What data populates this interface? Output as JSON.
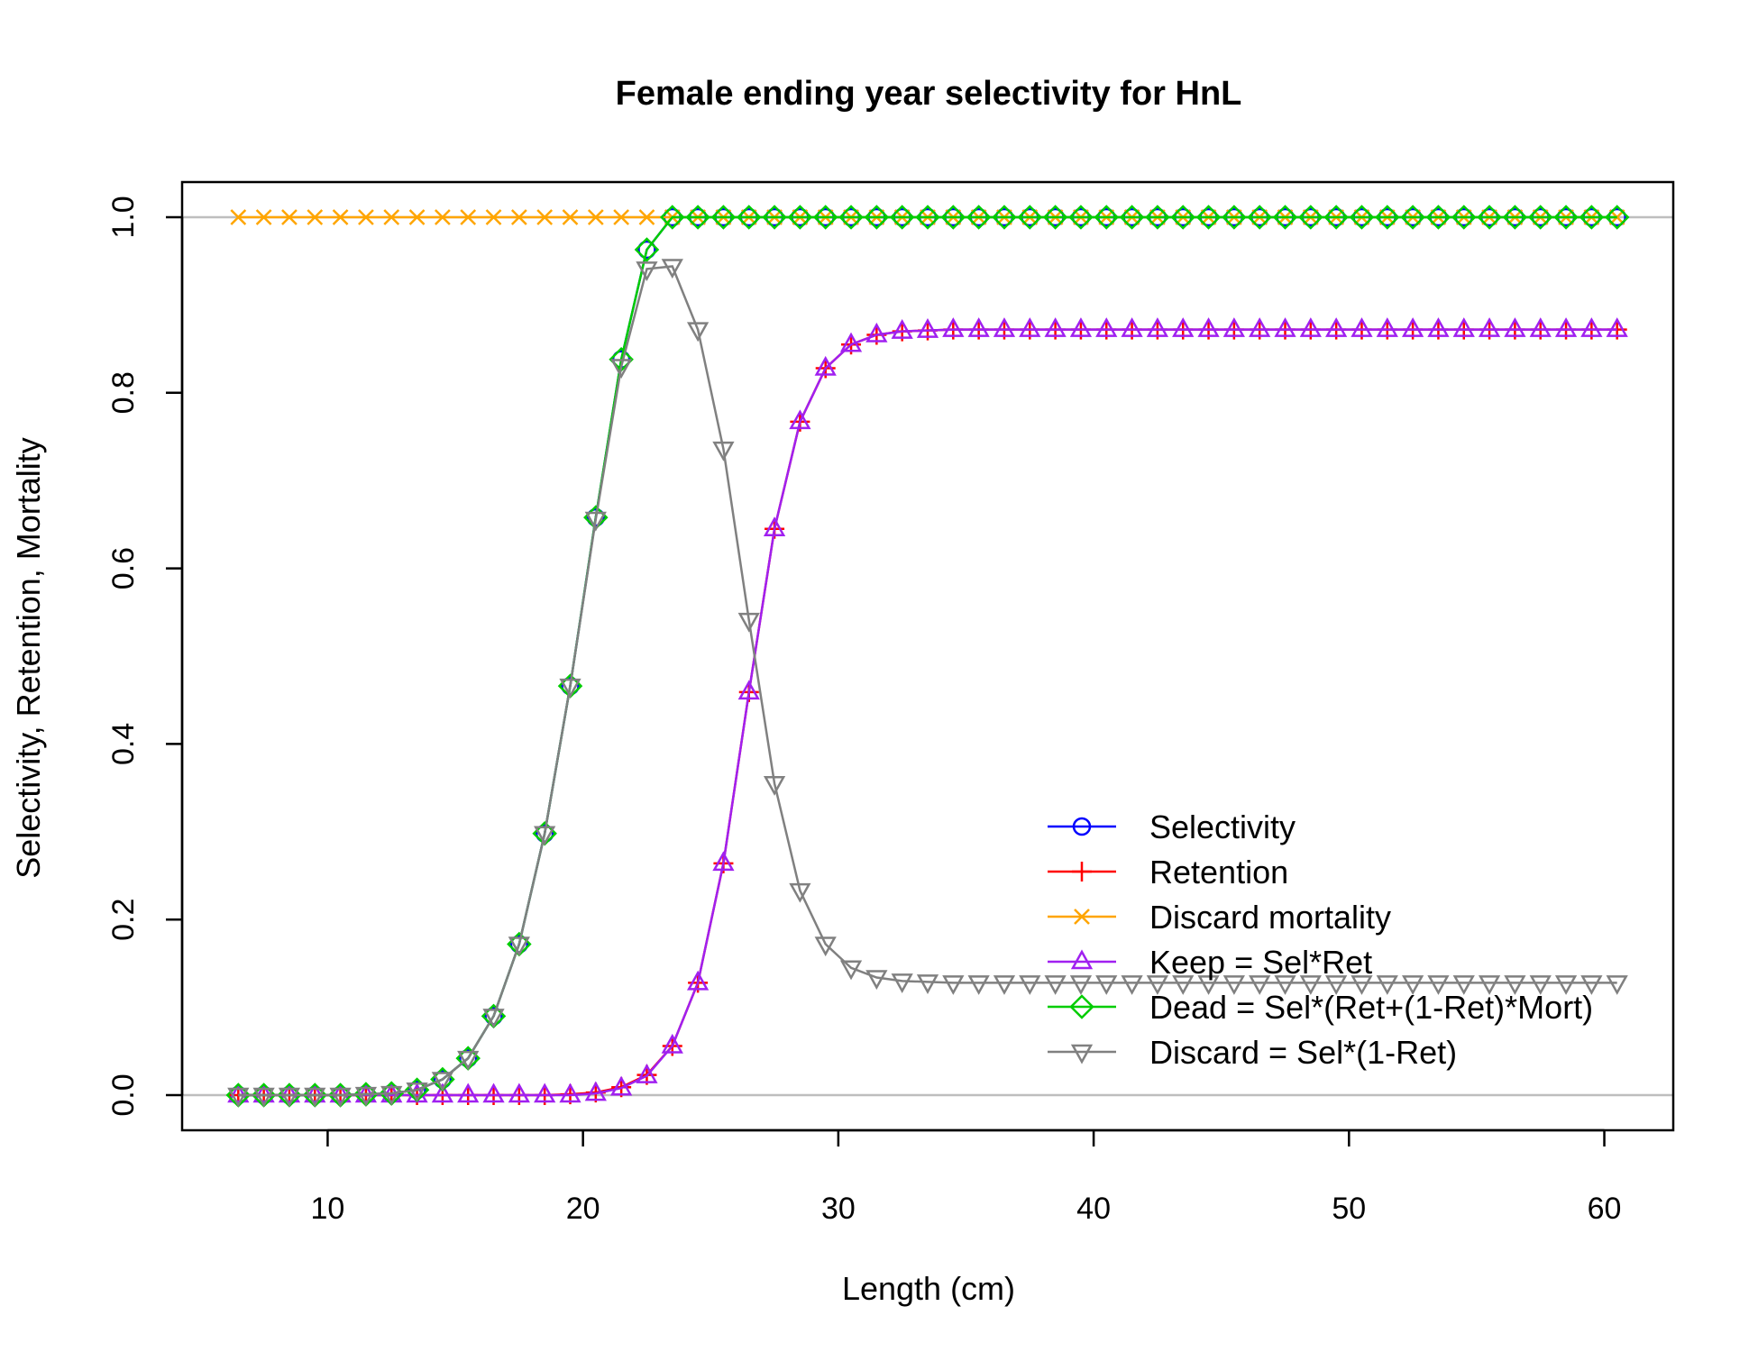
{
  "chart_data": {
    "type": "line",
    "title": "Female ending year selectivity for HnL",
    "xlabel": "Length (cm)",
    "ylabel": "Selectivity, Retention, Mortality",
    "xlim": [
      4.3,
      62.7
    ],
    "ylim": [
      -0.04,
      1.04
    ],
    "xticks": [
      10,
      20,
      30,
      40,
      50,
      60
    ],
    "yticks": [
      0.0,
      0.2,
      0.4,
      0.6,
      0.8,
      1.0
    ],
    "xtick_labels": [
      "10",
      "20",
      "30",
      "40",
      "50",
      "60"
    ],
    "ytick_labels": [
      "0.0",
      "0.2",
      "0.4",
      "0.6",
      "0.8",
      "1.0"
    ],
    "reference_lines": [
      0,
      1
    ],
    "reference_color": "#bebebe",
    "legend_position": "bottom-right",
    "x": [
      6.5,
      7.5,
      8.5,
      9.5,
      10.5,
      11.5,
      12.5,
      13.5,
      14.5,
      15.5,
      16.5,
      17.5,
      18.5,
      19.5,
      20.5,
      21.5,
      22.5,
      23.5,
      24.5,
      25.5,
      26.5,
      27.5,
      28.5,
      29.5,
      30.5,
      31.5,
      32.5,
      33.5,
      34.5,
      35.5,
      36.5,
      37.5,
      38.5,
      39.5,
      40.5,
      41.5,
      42.5,
      43.5,
      44.5,
      45.5,
      46.5,
      47.5,
      48.5,
      49.5,
      50.5,
      51.5,
      52.5,
      53.5,
      54.5,
      55.5,
      56.5,
      57.5,
      58.5,
      59.5,
      60.5
    ],
    "series": [
      {
        "name": "Selectivity",
        "color": "#0000ff",
        "marker": "circle",
        "values": [
          0.0,
          0.0,
          0.0,
          0.0,
          0.0,
          0.001,
          0.002,
          0.006,
          0.018,
          0.042,
          0.09,
          0.172,
          0.298,
          0.466,
          0.658,
          0.838,
          0.963,
          1.0,
          1.0,
          1.0,
          1.0,
          1.0,
          1.0,
          1.0,
          1.0,
          1.0,
          1.0,
          1.0,
          1.0,
          1.0,
          1.0,
          1.0,
          1.0,
          1.0,
          1.0,
          1.0,
          1.0,
          1.0,
          1.0,
          1.0,
          1.0,
          1.0,
          1.0,
          1.0,
          1.0,
          1.0,
          1.0,
          1.0,
          1.0,
          1.0,
          1.0,
          1.0,
          1.0,
          1.0,
          1.0
        ]
      },
      {
        "name": "Retention",
        "color": "#ff0000",
        "marker": "plus",
        "values": [
          0.0,
          0.0,
          0.0,
          0.0,
          0.0,
          0.0,
          0.0,
          0.0,
          0.0,
          0.0,
          0.0,
          0.0,
          0.0,
          0.001,
          0.003,
          0.009,
          0.023,
          0.056,
          0.128,
          0.264,
          0.459,
          0.645,
          0.767,
          0.828,
          0.855,
          0.866,
          0.87,
          0.871,
          0.872,
          0.872,
          0.872,
          0.872,
          0.872,
          0.872,
          0.872,
          0.872,
          0.872,
          0.872,
          0.872,
          0.872,
          0.872,
          0.872,
          0.872,
          0.872,
          0.872,
          0.872,
          0.872,
          0.872,
          0.872,
          0.872,
          0.872,
          0.872,
          0.872,
          0.872,
          0.872
        ]
      },
      {
        "name": "Discard mortality",
        "color": "#ffa500",
        "marker": "x",
        "values": [
          1.0,
          1.0,
          1.0,
          1.0,
          1.0,
          1.0,
          1.0,
          1.0,
          1.0,
          1.0,
          1.0,
          1.0,
          1.0,
          1.0,
          1.0,
          1.0,
          1.0,
          1.0,
          1.0,
          1.0,
          1.0,
          1.0,
          1.0,
          1.0,
          1.0,
          1.0,
          1.0,
          1.0,
          1.0,
          1.0,
          1.0,
          1.0,
          1.0,
          1.0,
          1.0,
          1.0,
          1.0,
          1.0,
          1.0,
          1.0,
          1.0,
          1.0,
          1.0,
          1.0,
          1.0,
          1.0,
          1.0,
          1.0,
          1.0,
          1.0,
          1.0,
          1.0,
          1.0,
          1.0,
          1.0
        ]
      },
      {
        "name": "Keep = Sel*Ret",
        "color": "#a020f0",
        "marker": "triangle-up",
        "values": [
          0.0,
          0.0,
          0.0,
          0.0,
          0.0,
          0.0,
          0.0,
          0.0,
          0.0,
          0.0,
          0.0,
          0.0,
          0.0,
          0.0,
          0.002,
          0.008,
          0.022,
          0.056,
          0.128,
          0.264,
          0.459,
          0.645,
          0.767,
          0.828,
          0.855,
          0.866,
          0.87,
          0.871,
          0.872,
          0.872,
          0.872,
          0.872,
          0.872,
          0.872,
          0.872,
          0.872,
          0.872,
          0.872,
          0.872,
          0.872,
          0.872,
          0.872,
          0.872,
          0.872,
          0.872,
          0.872,
          0.872,
          0.872,
          0.872,
          0.872,
          0.872,
          0.872,
          0.872,
          0.872,
          0.872
        ]
      },
      {
        "name": "Dead = Sel*(Ret+(1-Ret)*Mort)",
        "color": "#00cd00",
        "marker": "diamond",
        "values": [
          0.0,
          0.0,
          0.0,
          0.0,
          0.0,
          0.001,
          0.002,
          0.006,
          0.018,
          0.042,
          0.09,
          0.172,
          0.298,
          0.466,
          0.658,
          0.838,
          0.963,
          1.0,
          1.0,
          1.0,
          1.0,
          1.0,
          1.0,
          1.0,
          1.0,
          1.0,
          1.0,
          1.0,
          1.0,
          1.0,
          1.0,
          1.0,
          1.0,
          1.0,
          1.0,
          1.0,
          1.0,
          1.0,
          1.0,
          1.0,
          1.0,
          1.0,
          1.0,
          1.0,
          1.0,
          1.0,
          1.0,
          1.0,
          1.0,
          1.0,
          1.0,
          1.0,
          1.0,
          1.0,
          1.0
        ]
      },
      {
        "name": "Discard = Sel*(1-Ret)",
        "color": "#808080",
        "marker": "triangle-down",
        "values": [
          0.0,
          0.0,
          0.0,
          0.0,
          0.0,
          0.001,
          0.002,
          0.006,
          0.018,
          0.042,
          0.09,
          0.172,
          0.298,
          0.466,
          0.656,
          0.83,
          0.941,
          0.944,
          0.872,
          0.736,
          0.541,
          0.355,
          0.233,
          0.172,
          0.145,
          0.134,
          0.13,
          0.129,
          0.128,
          0.128,
          0.128,
          0.128,
          0.128,
          0.128,
          0.128,
          0.128,
          0.128,
          0.128,
          0.128,
          0.128,
          0.128,
          0.128,
          0.128,
          0.128,
          0.128,
          0.128,
          0.128,
          0.128,
          0.128,
          0.128,
          0.128,
          0.128,
          0.128,
          0.128,
          0.128
        ]
      }
    ]
  }
}
